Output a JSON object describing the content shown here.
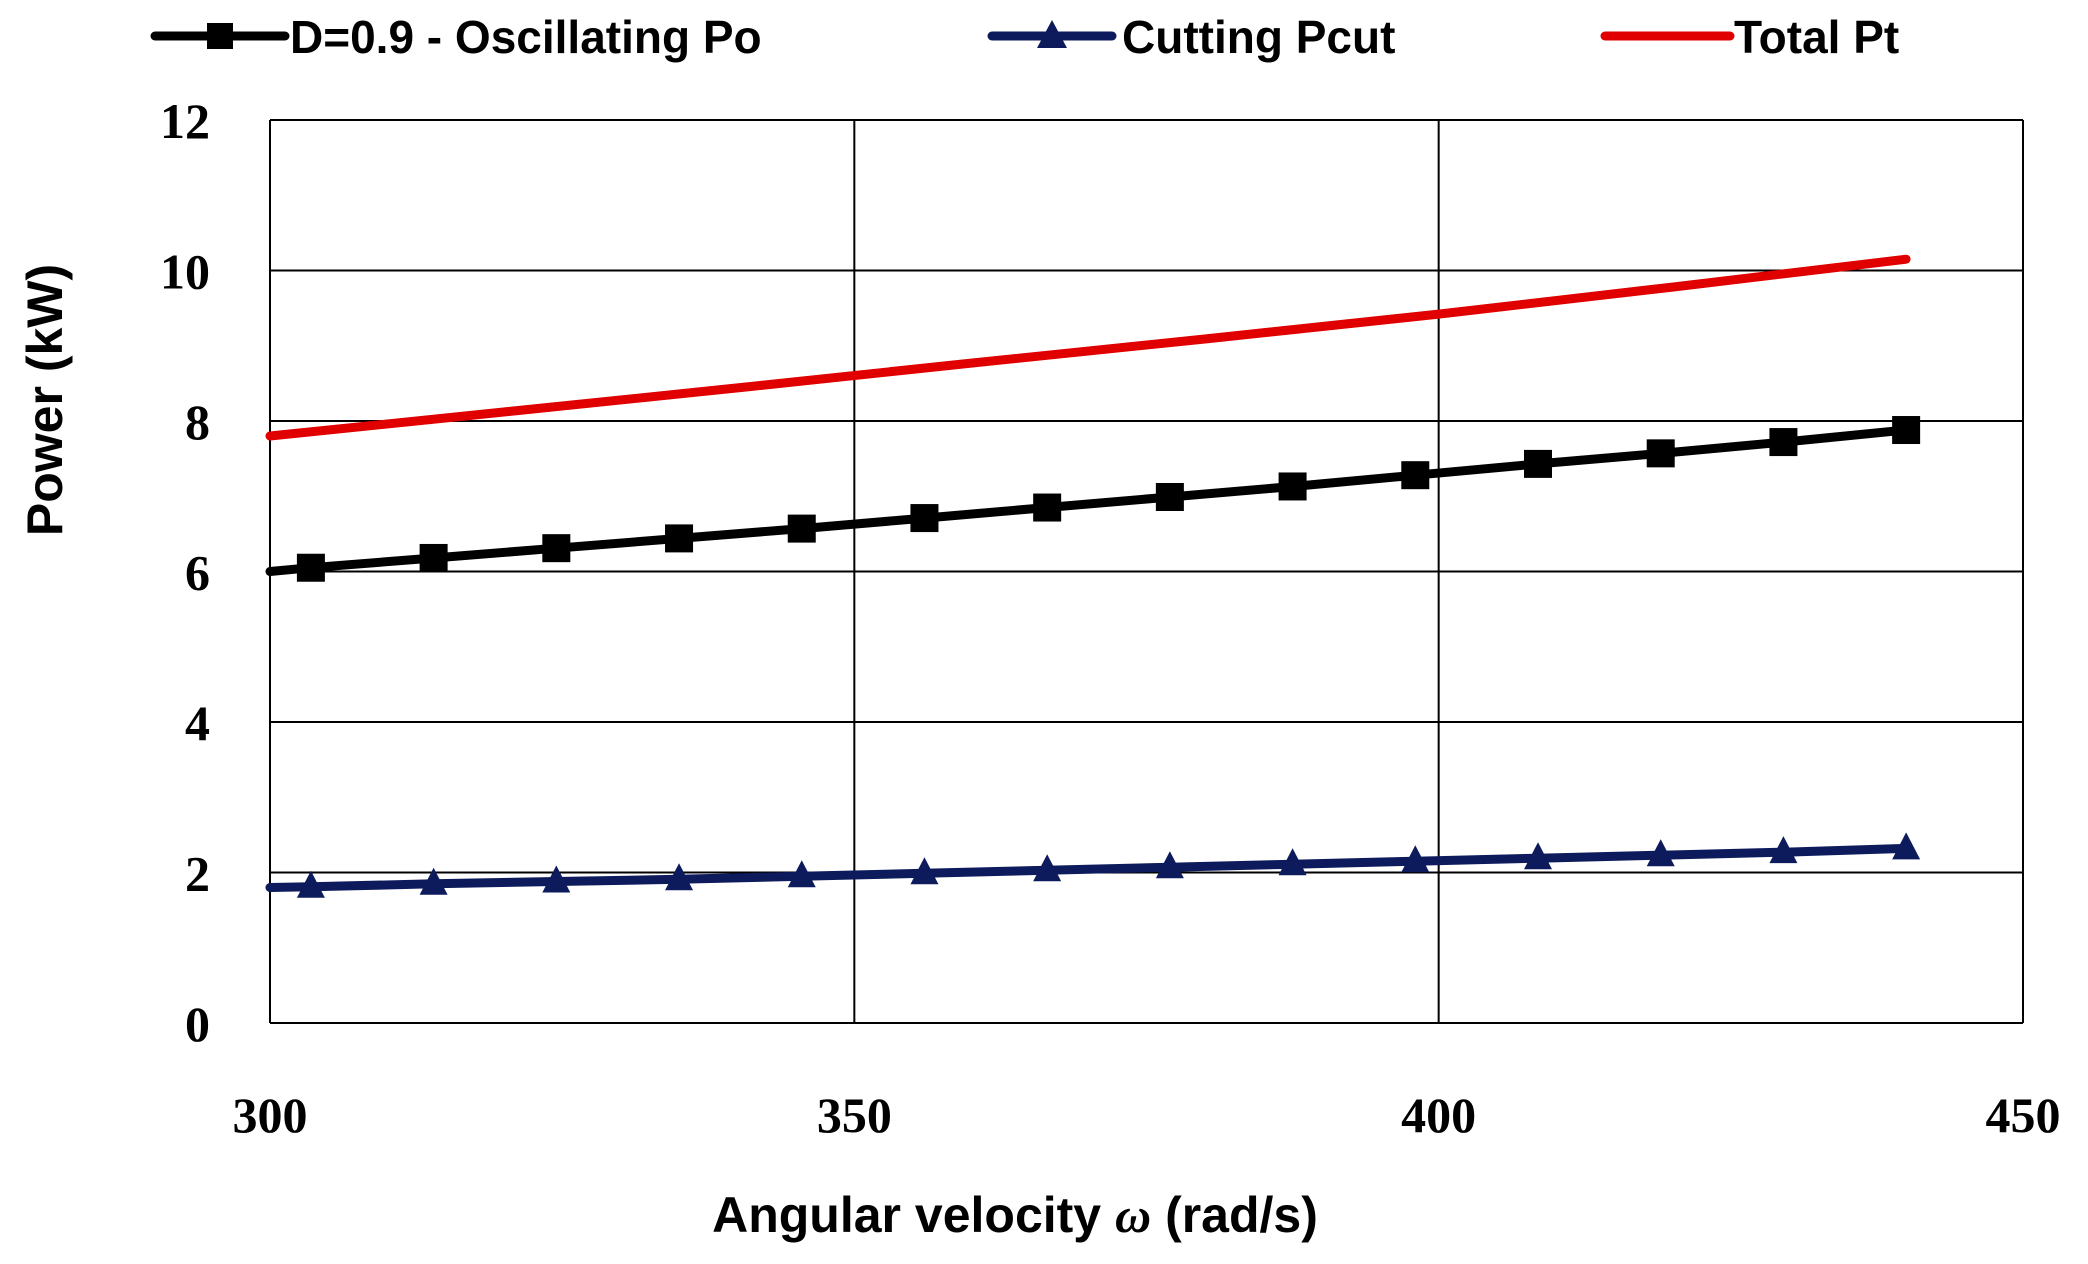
{
  "chart_data": {
    "type": "line",
    "title": "",
    "xlabel": "Angular velocity ω (rad/s)",
    "xlabel_main": "Angular velocity ",
    "xlabel_symbol": "ω",
    "xlabel_unit": " (rad/s)",
    "ylabel": "Power (kW)",
    "xlim": [
      300,
      450
    ],
    "ylim": [
      0,
      12
    ],
    "xticks": [
      "300",
      "350",
      "400",
      "450"
    ],
    "yticks": [
      "0",
      "2",
      "4",
      "6",
      "8",
      "10",
      "12"
    ],
    "grid": true,
    "legend_position": "top",
    "series": [
      {
        "name": "D=0.9 - Oscillating Po",
        "color": "#000000",
        "marker": "square",
        "x": [
          300,
          303.5,
          314,
          324.5,
          335,
          345.5,
          356,
          366.5,
          377,
          387.5,
          398,
          408.5,
          419,
          429.5,
          440
        ],
        "y": [
          6.0,
          6.05,
          6.18,
          6.31,
          6.44,
          6.57,
          6.71,
          6.85,
          6.99,
          7.13,
          7.28,
          7.43,
          7.57,
          7.72,
          7.88
        ],
        "marked": [
          false,
          true,
          true,
          true,
          true,
          true,
          true,
          true,
          true,
          true,
          true,
          true,
          true,
          true,
          true
        ]
      },
      {
        "name": "Cutting Pcut",
        "color": "#0d1a5c",
        "marker": "triangle",
        "x": [
          300,
          303.5,
          314,
          324.5,
          335,
          345.5,
          356,
          366.5,
          377,
          387.5,
          398,
          408.5,
          419,
          429.5,
          440
        ],
        "y": [
          1.8,
          1.81,
          1.85,
          1.88,
          1.91,
          1.95,
          1.99,
          2.03,
          2.07,
          2.11,
          2.15,
          2.19,
          2.23,
          2.27,
          2.32
        ],
        "marked": [
          false,
          true,
          true,
          true,
          true,
          true,
          true,
          true,
          true,
          true,
          true,
          true,
          true,
          true,
          true
        ]
      },
      {
        "name": "Total Pt",
        "color": "#e00000",
        "marker": "none",
        "x": [
          300,
          320,
          340,
          360,
          380,
          400,
          420,
          440
        ],
        "y": [
          7.8,
          8.12,
          8.44,
          8.77,
          9.09,
          9.42,
          9.78,
          10.15
        ],
        "marked": [
          false,
          false,
          false,
          false,
          false,
          false,
          false,
          false
        ]
      }
    ]
  }
}
